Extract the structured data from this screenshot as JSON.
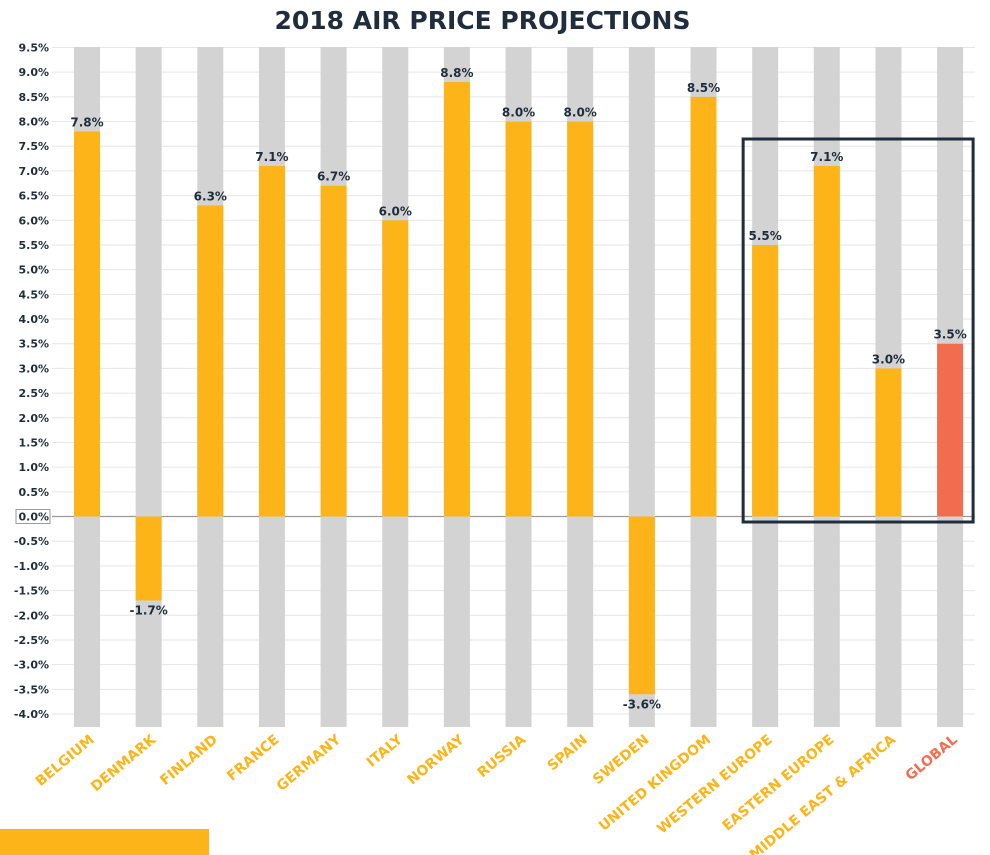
{
  "colors": {
    "bar": "#FDB418",
    "highlight": "#F26C50",
    "track": "#D3D3D3",
    "text": "#1F2D3D",
    "box": "#1F2D3D"
  },
  "chart_data": {
    "type": "bar",
    "title": "2018 AIR PRICE PROJECTIONS",
    "categories": [
      "BELGIUM",
      "DENMARK",
      "FINLAND",
      "FRANCE",
      "GERMANY",
      "ITALY",
      "NORWAY",
      "RUSSIA",
      "SPAIN",
      "SWEDEN",
      "UNITED KINGDOM",
      "WESTERN EUROPE",
      "EASTERN EUROPE",
      "MIDDLE EAST & AFRICA",
      "GLOBAL"
    ],
    "values": [
      7.8,
      -1.7,
      6.3,
      7.1,
      6.7,
      6.0,
      8.8,
      8.0,
      8.0,
      -3.6,
      8.5,
      5.5,
      7.1,
      3.0,
      3.5
    ],
    "data_labels": [
      "7.8%",
      "-1.7%",
      "6.3%",
      "7.1%",
      "6.7%",
      "6.0%",
      "8.8%",
      "8.0%",
      "8.0%",
      "-3.6%",
      "8.5%",
      "5.5%",
      "7.1%",
      "3.0%",
      "3.5%"
    ],
    "highlighted": [
      "GLOBAL"
    ],
    "boxed_categories": [
      "WESTERN EUROPE",
      "EASTERN EUROPE",
      "MIDDLE EAST & AFRICA",
      "GLOBAL"
    ],
    "ylim": [
      -4.0,
      9.5
    ],
    "y_ticks": [
      "9.5%",
      "9.0%",
      "8.5%",
      "8.0%",
      "7.5%",
      "7.0%",
      "6.5%",
      "6.0%",
      "5.5%",
      "5.0%",
      "4.5%",
      "4.0%",
      "3.5%",
      "3.0%",
      "2.5%",
      "2.0%",
      "1.5%",
      "1.0%",
      "0.5%",
      "0.0%",
      "-0.5%",
      "-1.0%",
      "-1.5%",
      "-2.0%",
      "-2.5%",
      "-3.0%",
      "-3.5%",
      "-4.0%"
    ],
    "y_tick_values": [
      9.5,
      9.0,
      8.5,
      8.0,
      7.5,
      7.0,
      6.5,
      6.0,
      5.5,
      5.0,
      4.5,
      4.0,
      3.5,
      3.0,
      2.5,
      2.0,
      1.5,
      1.0,
      0.5,
      0.0,
      -0.5,
      -1.0,
      -1.5,
      -2.0,
      -2.5,
      -3.0,
      -3.5,
      -4.0
    ],
    "grid": true,
    "xlabel": "",
    "ylabel": ""
  }
}
